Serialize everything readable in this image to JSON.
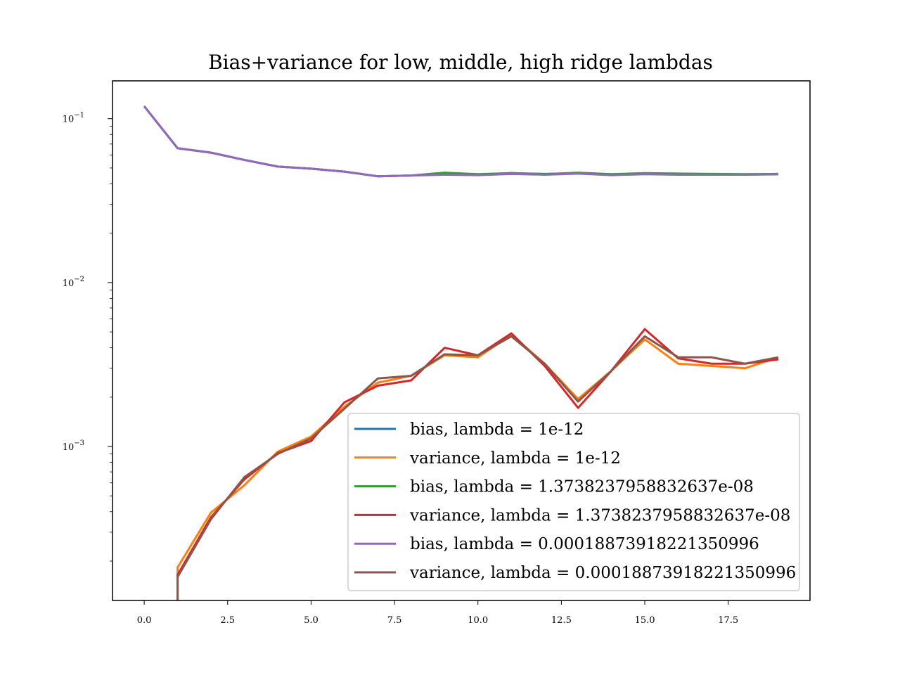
{
  "chart_data": {
    "type": "line",
    "title": "Bias+variance for low, middle, high ridge lambdas",
    "xlabel": "",
    "ylabel": "",
    "xlim": [
      -0.95,
      19.95
    ],
    "ylim": [
      0.000115,
      0.17
    ],
    "y_scale": "log",
    "grid": false,
    "legend_position": "lower right",
    "x_ticks": [
      0.0,
      2.5,
      5.0,
      7.5,
      10.0,
      12.5,
      15.0,
      17.5
    ],
    "x_tick_labels": [
      "0.0",
      "2.5",
      "5.0",
      "7.5",
      "10.0",
      "12.5",
      "15.0",
      "17.5"
    ],
    "y_ticks": [
      {
        "value": 0.1,
        "base": "10",
        "exp": "−1"
      },
      {
        "value": 0.01,
        "base": "10",
        "exp": "−2"
      },
      {
        "value": 0.001,
        "base": "10",
        "exp": "−3"
      }
    ],
    "x": [
      0,
      1,
      2,
      3,
      4,
      5,
      6,
      7,
      8,
      9,
      10,
      11,
      12,
      13,
      14,
      15,
      16,
      17,
      18,
      19
    ],
    "series": [
      {
        "name": "bias, lambda = 1e-12",
        "color": "#1f77b4",
        "values": [
          0.119,
          0.066,
          0.062,
          0.056,
          0.051,
          0.0495,
          0.0475,
          0.0445,
          0.045,
          0.0465,
          0.0455,
          0.0465,
          0.046,
          0.0465,
          0.0455,
          0.046,
          0.046,
          0.0458,
          0.0455,
          0.046
        ]
      },
      {
        "name": "variance, lambda = 1e-12",
        "color": "#ff7f0e",
        "values": [
          null,
          0.000183,
          0.000395,
          0.00058,
          0.00093,
          0.00115,
          0.00175,
          0.00245,
          0.0027,
          0.0036,
          0.0035,
          0.0048,
          0.0032,
          0.00195,
          0.0029,
          0.0045,
          0.0032,
          0.0031,
          0.003,
          0.0035
        ]
      },
      {
        "name": "bias, lambda = 1.3738237958832637e-08",
        "color": "#2ca02c",
        "values": [
          0.119,
          0.066,
          0.062,
          0.056,
          0.051,
          0.0495,
          0.0475,
          0.0445,
          0.045,
          0.0468,
          0.0458,
          0.0465,
          0.0458,
          0.0468,
          0.0458,
          0.0465,
          0.0462,
          0.046,
          0.0458,
          0.046
        ]
      },
      {
        "name": "variance, lambda = 1.3738237958832637e-08",
        "color": "#d62728",
        "values": [
          null,
          0.000165,
          0.00037,
          0.00063,
          0.00091,
          0.00108,
          0.00186,
          0.00235,
          0.00253,
          0.004,
          0.0036,
          0.0049,
          0.0031,
          0.00172,
          0.0029,
          0.0052,
          0.00345,
          0.0032,
          0.0032,
          0.0034
        ]
      },
      {
        "name": "bias, lambda = 0.00018873918221350996",
        "color": "#9467bd",
        "values": [
          0.119,
          0.066,
          0.062,
          0.056,
          0.051,
          0.0495,
          0.0475,
          0.0445,
          0.045,
          0.0455,
          0.0452,
          0.046,
          0.0455,
          0.0462,
          0.0452,
          0.0458,
          0.0455,
          0.0455,
          0.0455,
          0.0457
        ]
      },
      {
        "name": "variance, lambda = 0.00018873918221350996",
        "color": "#8c564b",
        "values": [
          null,
          0.00016,
          0.00036,
          0.00065,
          0.0009,
          0.00112,
          0.0017,
          0.0026,
          0.0027,
          0.00365,
          0.0036,
          0.0047,
          0.0032,
          0.00188,
          0.0029,
          0.0047,
          0.0035,
          0.0035,
          0.0032,
          0.0035
        ]
      }
    ]
  }
}
